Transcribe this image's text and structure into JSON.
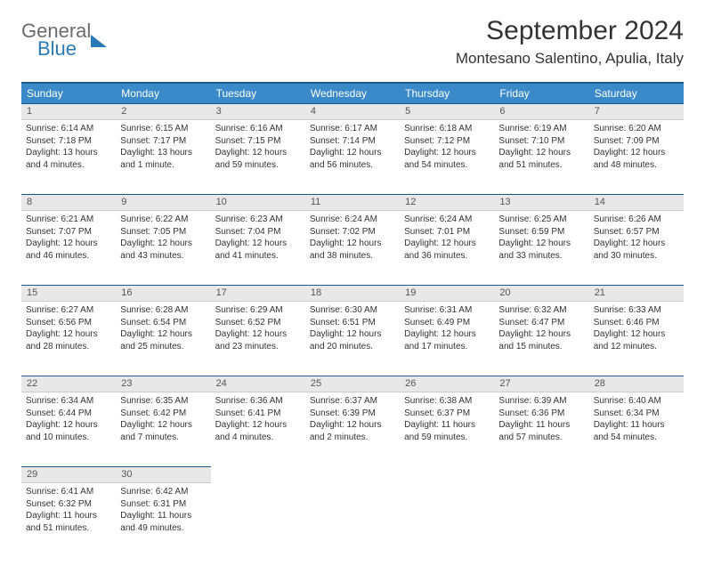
{
  "logo": {
    "line1": "General",
    "line2": "Blue"
  },
  "title": "September 2024",
  "location": "Montesano Salentino, Apulia, Italy",
  "colors": {
    "header_bg": "#3a89c9",
    "header_border": "#1a5a8a",
    "daynum_bg": "#e8e8e8",
    "text": "#333333",
    "logo_gray": "#6b6b6b",
    "logo_blue": "#2a7ab8"
  },
  "weekdays": [
    "Sunday",
    "Monday",
    "Tuesday",
    "Wednesday",
    "Thursday",
    "Friday",
    "Saturday"
  ],
  "weeks": [
    [
      {
        "n": "1",
        "sr": "6:14 AM",
        "ss": "7:18 PM",
        "dl": "13 hours and 4 minutes."
      },
      {
        "n": "2",
        "sr": "6:15 AM",
        "ss": "7:17 PM",
        "dl": "13 hours and 1 minute."
      },
      {
        "n": "3",
        "sr": "6:16 AM",
        "ss": "7:15 PM",
        "dl": "12 hours and 59 minutes."
      },
      {
        "n": "4",
        "sr": "6:17 AM",
        "ss": "7:14 PM",
        "dl": "12 hours and 56 minutes."
      },
      {
        "n": "5",
        "sr": "6:18 AM",
        "ss": "7:12 PM",
        "dl": "12 hours and 54 minutes."
      },
      {
        "n": "6",
        "sr": "6:19 AM",
        "ss": "7:10 PM",
        "dl": "12 hours and 51 minutes."
      },
      {
        "n": "7",
        "sr": "6:20 AM",
        "ss": "7:09 PM",
        "dl": "12 hours and 48 minutes."
      }
    ],
    [
      {
        "n": "8",
        "sr": "6:21 AM",
        "ss": "7:07 PM",
        "dl": "12 hours and 46 minutes."
      },
      {
        "n": "9",
        "sr": "6:22 AM",
        "ss": "7:05 PM",
        "dl": "12 hours and 43 minutes."
      },
      {
        "n": "10",
        "sr": "6:23 AM",
        "ss": "7:04 PM",
        "dl": "12 hours and 41 minutes."
      },
      {
        "n": "11",
        "sr": "6:24 AM",
        "ss": "7:02 PM",
        "dl": "12 hours and 38 minutes."
      },
      {
        "n": "12",
        "sr": "6:24 AM",
        "ss": "7:01 PM",
        "dl": "12 hours and 36 minutes."
      },
      {
        "n": "13",
        "sr": "6:25 AM",
        "ss": "6:59 PM",
        "dl": "12 hours and 33 minutes."
      },
      {
        "n": "14",
        "sr": "6:26 AM",
        "ss": "6:57 PM",
        "dl": "12 hours and 30 minutes."
      }
    ],
    [
      {
        "n": "15",
        "sr": "6:27 AM",
        "ss": "6:56 PM",
        "dl": "12 hours and 28 minutes."
      },
      {
        "n": "16",
        "sr": "6:28 AM",
        "ss": "6:54 PM",
        "dl": "12 hours and 25 minutes."
      },
      {
        "n": "17",
        "sr": "6:29 AM",
        "ss": "6:52 PM",
        "dl": "12 hours and 23 minutes."
      },
      {
        "n": "18",
        "sr": "6:30 AM",
        "ss": "6:51 PM",
        "dl": "12 hours and 20 minutes."
      },
      {
        "n": "19",
        "sr": "6:31 AM",
        "ss": "6:49 PM",
        "dl": "12 hours and 17 minutes."
      },
      {
        "n": "20",
        "sr": "6:32 AM",
        "ss": "6:47 PM",
        "dl": "12 hours and 15 minutes."
      },
      {
        "n": "21",
        "sr": "6:33 AM",
        "ss": "6:46 PM",
        "dl": "12 hours and 12 minutes."
      }
    ],
    [
      {
        "n": "22",
        "sr": "6:34 AM",
        "ss": "6:44 PM",
        "dl": "12 hours and 10 minutes."
      },
      {
        "n": "23",
        "sr": "6:35 AM",
        "ss": "6:42 PM",
        "dl": "12 hours and 7 minutes."
      },
      {
        "n": "24",
        "sr": "6:36 AM",
        "ss": "6:41 PM",
        "dl": "12 hours and 4 minutes."
      },
      {
        "n": "25",
        "sr": "6:37 AM",
        "ss": "6:39 PM",
        "dl": "12 hours and 2 minutes."
      },
      {
        "n": "26",
        "sr": "6:38 AM",
        "ss": "6:37 PM",
        "dl": "11 hours and 59 minutes."
      },
      {
        "n": "27",
        "sr": "6:39 AM",
        "ss": "6:36 PM",
        "dl": "11 hours and 57 minutes."
      },
      {
        "n": "28",
        "sr": "6:40 AM",
        "ss": "6:34 PM",
        "dl": "11 hours and 54 minutes."
      }
    ],
    [
      {
        "n": "29",
        "sr": "6:41 AM",
        "ss": "6:32 PM",
        "dl": "11 hours and 51 minutes."
      },
      {
        "n": "30",
        "sr": "6:42 AM",
        "ss": "6:31 PM",
        "dl": "11 hours and 49 minutes."
      },
      null,
      null,
      null,
      null,
      null
    ]
  ],
  "labels": {
    "sunrise": "Sunrise:",
    "sunset": "Sunset:",
    "daylight": "Daylight:"
  }
}
